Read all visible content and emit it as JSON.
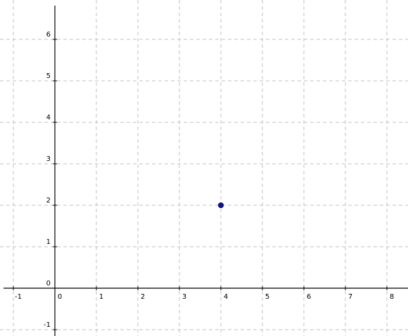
{
  "chart_data": {
    "type": "scatter",
    "title": "",
    "xlabel": "",
    "ylabel": "",
    "xlim": [
      -1,
      8
    ],
    "ylim": [
      -1,
      6
    ],
    "x_ticks": [
      -1,
      0,
      1,
      2,
      3,
      4,
      5,
      6,
      7,
      8
    ],
    "y_ticks": [
      -1,
      0,
      1,
      2,
      3,
      4,
      5,
      6
    ],
    "grid": true,
    "grid_style": "dashed",
    "series": [
      {
        "points": [
          {
            "x": 4,
            "y": 2
          }
        ],
        "color": "#1010a0"
      }
    ]
  }
}
